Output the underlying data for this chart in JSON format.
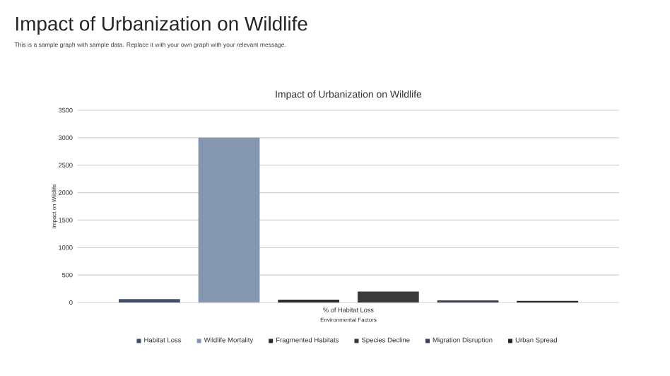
{
  "chart_data": {
    "type": "bar",
    "title": "Impact of Urbanization on Wildlife",
    "subtitle": "This is a sample graph with sample data. Replace it with your own graph with your relevant message.",
    "annotations": [
      "Impact of Urbanization on Wildlife"
    ],
    "xlabel": "Environmental Factors",
    "ylabel": "Impact on Wildlife",
    "categories": [
      "% of Habitat Loss"
    ],
    "series": [
      {
        "name": "Habitat Loss",
        "color": "#3f5068",
        "values": [
          60
        ]
      },
      {
        "name": "Wildlife Mortality",
        "color": "#8496b0",
        "values": [
          3000
        ]
      },
      {
        "name": "Fragmented Habitats",
        "color": "#2e2e2e",
        "values": [
          50
        ]
      },
      {
        "name": "Species Decline",
        "color": "#3a3a3a",
        "values": [
          200
        ]
      },
      {
        "name": "Migration Disruption",
        "color": "#3a4356",
        "values": [
          40
        ]
      },
      {
        "name": "Urban Spread",
        "color": "#262626",
        "values": [
          30
        ]
      }
    ],
    "ylim": [
      0,
      3500
    ],
    "yticks": [
      0,
      500,
      1000,
      1500,
      2000,
      2500,
      3000,
      3500
    ],
    "grid": "y",
    "legend": "bottom"
  }
}
